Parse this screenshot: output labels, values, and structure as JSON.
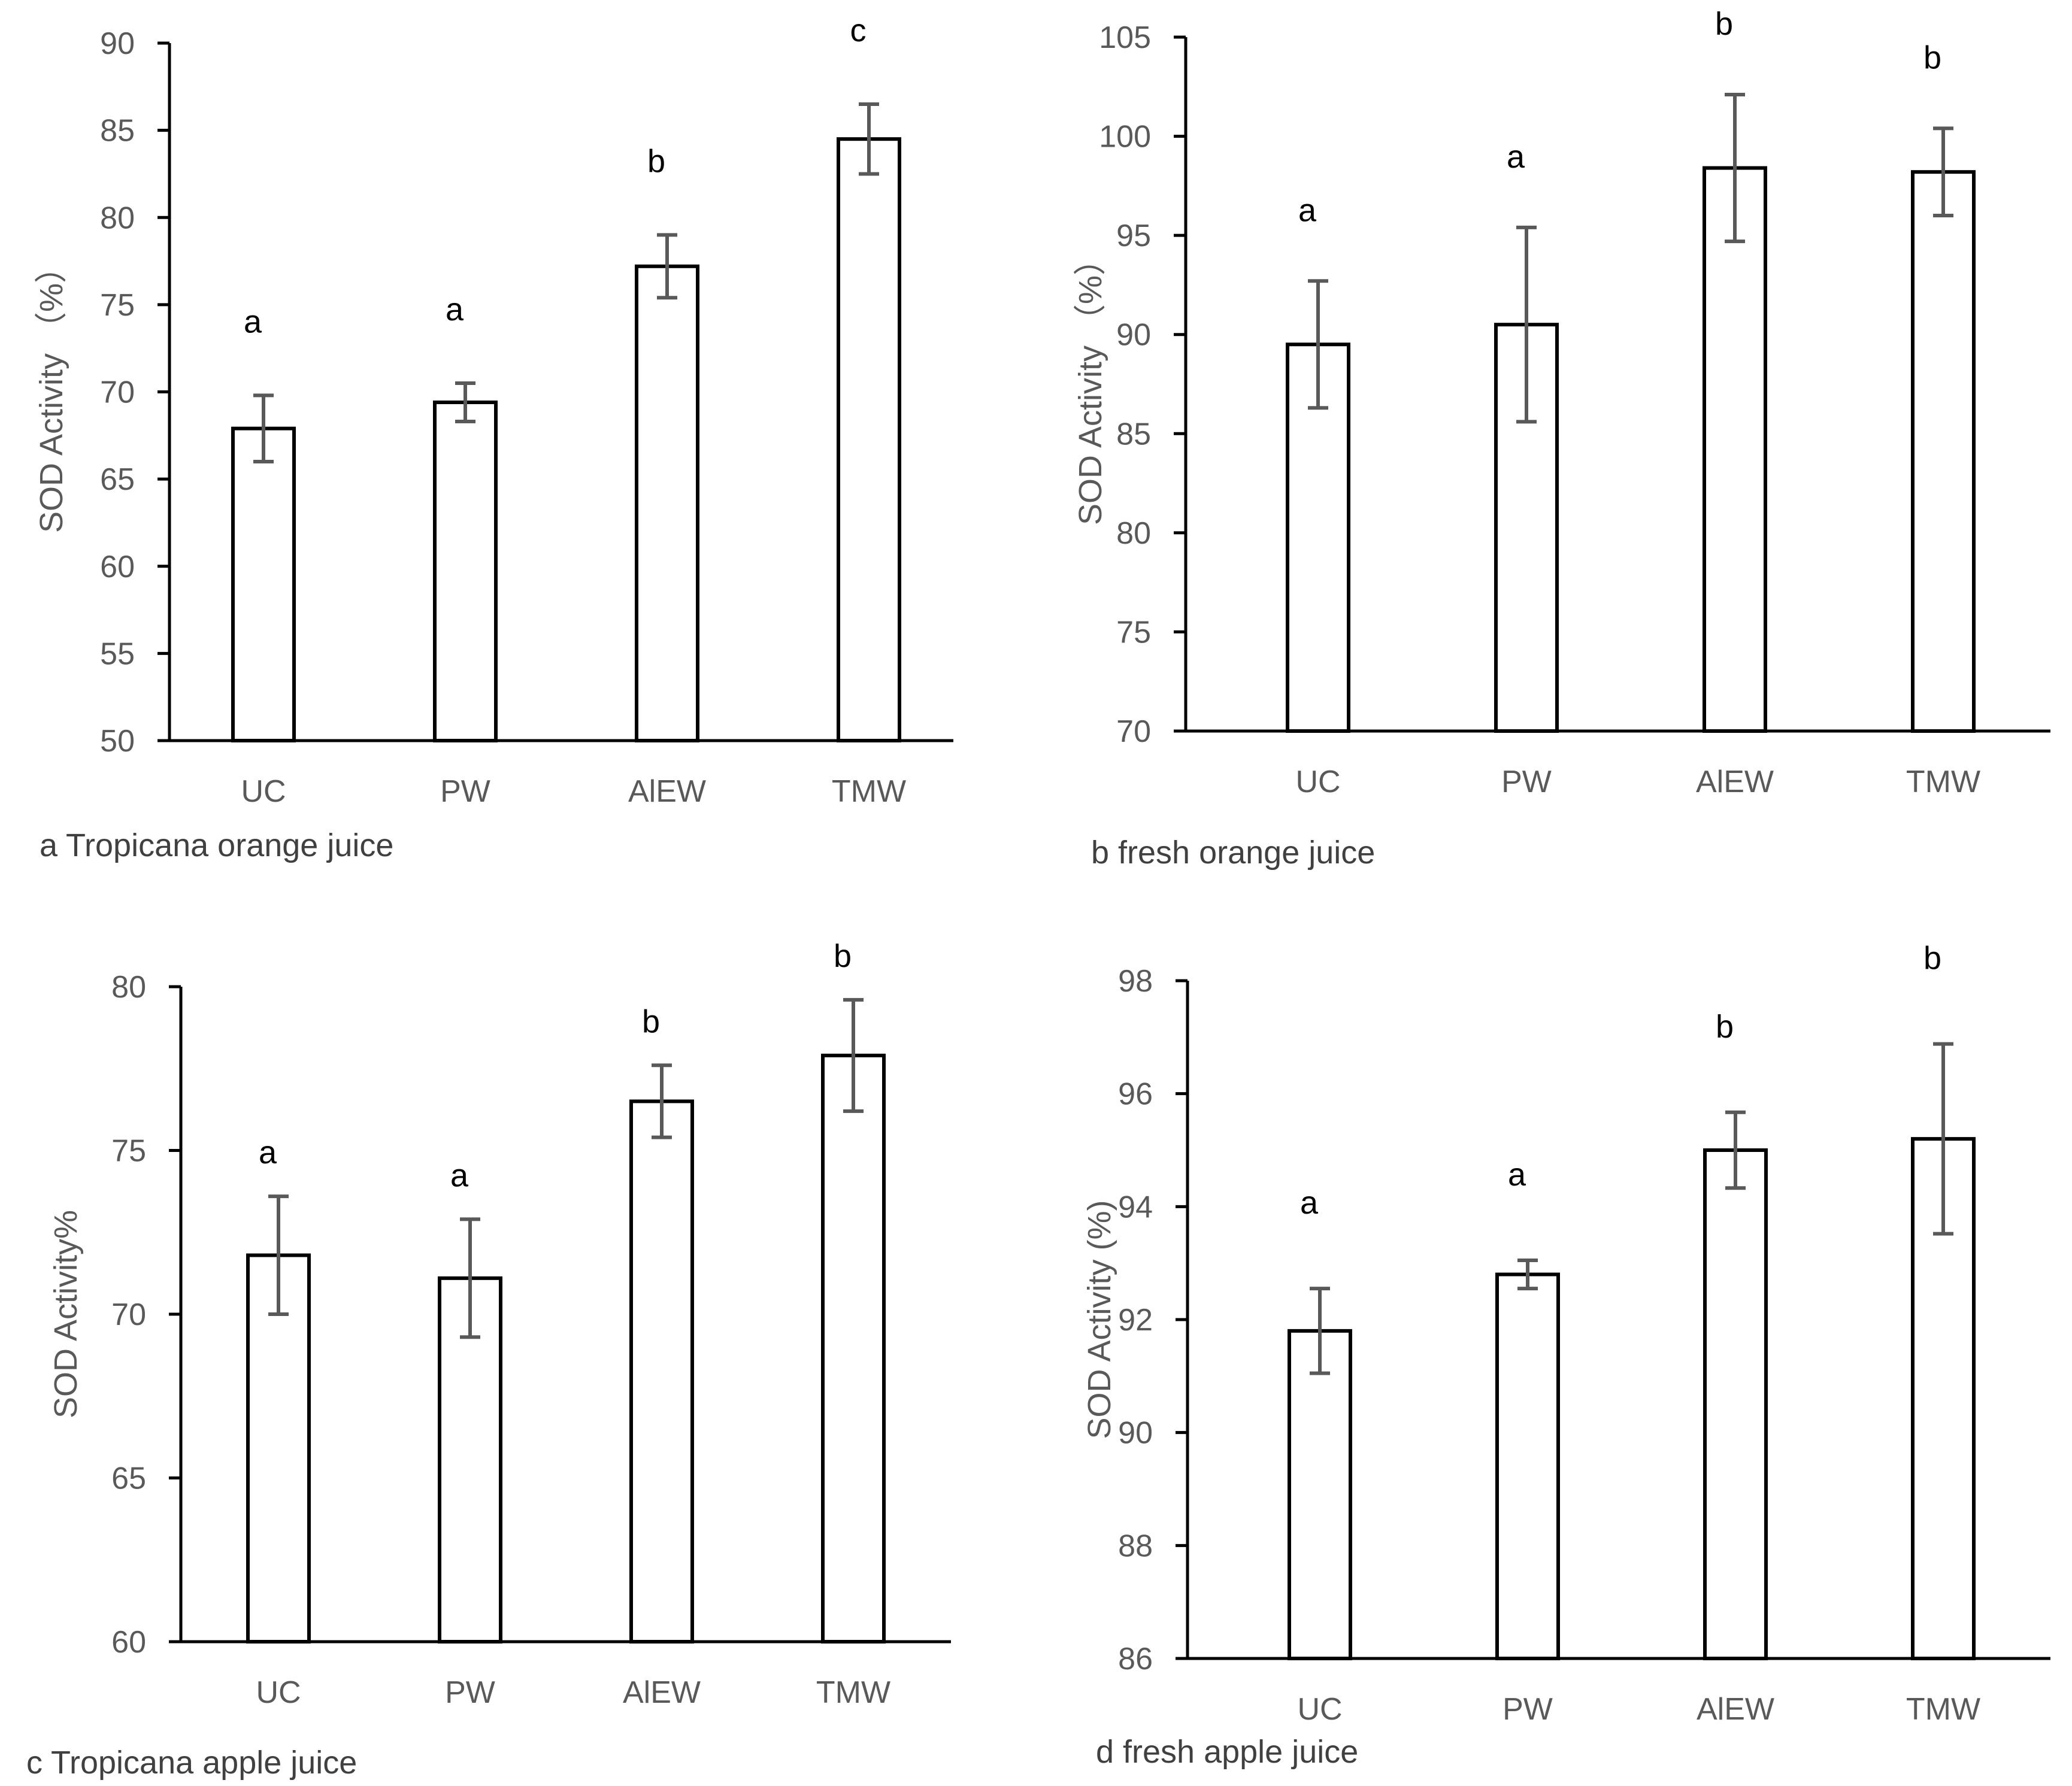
{
  "chart_data": [
    {
      "type": "bar",
      "caption": "a Tropicana orange juice",
      "ylabel": "SOD Activity （%）",
      "categories": [
        "UC",
        "PW",
        "AlEW",
        "TMW"
      ],
      "values": [
        67.9,
        69.4,
        77.2,
        84.5
      ],
      "error": [
        1.9,
        1.1,
        1.8,
        2.0
      ],
      "significance": [
        "a",
        "a",
        "b",
        "c"
      ],
      "ylim": [
        50,
        90
      ],
      "yticks": [
        50,
        55,
        60,
        65,
        70,
        75,
        80,
        85,
        90
      ],
      "grid": false
    },
    {
      "type": "bar",
      "caption": "b fresh orange juice",
      "ylabel": "SOD Activity （%）",
      "categories": [
        "UC",
        "PW",
        "AlEW",
        "TMW"
      ],
      "values": [
        89.5,
        90.5,
        98.4,
        98.2
      ],
      "error": [
        3.2,
        4.9,
        3.7,
        2.2
      ],
      "significance": [
        "a",
        "a",
        "b",
        "b"
      ],
      "ylim": [
        70,
        105
      ],
      "yticks": [
        70,
        75,
        80,
        85,
        90,
        95,
        100,
        105
      ],
      "grid": false
    },
    {
      "type": "bar",
      "caption": "c Tropicana apple juice",
      "ylabel": "SOD Activity%",
      "categories": [
        "UC",
        "PW",
        "AlEW",
        "TMW"
      ],
      "values": [
        71.8,
        71.1,
        76.5,
        77.9
      ],
      "error": [
        1.8,
        1.8,
        1.1,
        1.7
      ],
      "significance": [
        "a",
        "a",
        "b",
        "b"
      ],
      "ylim": [
        60,
        80
      ],
      "yticks": [
        60,
        65,
        70,
        75,
        80
      ],
      "grid": false
    },
    {
      "type": "bar",
      "caption": "d fresh apple juice",
      "ylabel": "SOD Activity (%)",
      "categories": [
        "UC",
        "PW",
        "AlEW",
        "TMW"
      ],
      "values": [
        91.8,
        92.8,
        95.0,
        95.2
      ],
      "error": [
        0.75,
        0.25,
        0.67,
        1.68
      ],
      "significance": [
        "a",
        "a",
        "b",
        "b"
      ],
      "ylim": [
        86,
        98
      ],
      "yticks": [
        86,
        88,
        90,
        92,
        94,
        96,
        98
      ],
      "grid": false
    }
  ]
}
